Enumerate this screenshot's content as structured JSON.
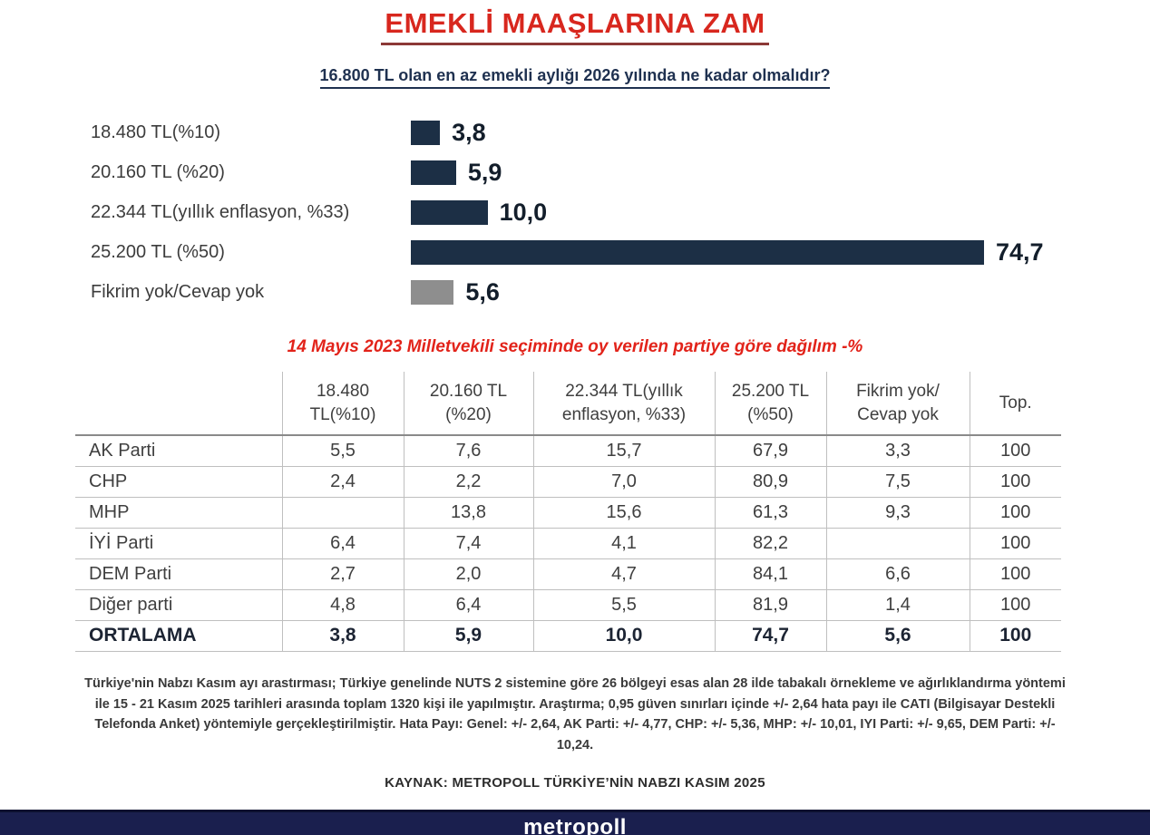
{
  "title": "EMEKLİ MAAŞLARINA ZAM",
  "question": "16.800 TL olan en az emekli aylığı 2026 yılında ne kadar olmalıdır?",
  "chart_data": {
    "type": "bar",
    "orientation": "horizontal",
    "categories": [
      "18.480 TL(%10)",
      "20.160 TL (%20)",
      "22.344 TL(yıllık enflasyon, %33)",
      "25.200 TL (%50)",
      "Fikrim yok/Cevap yok"
    ],
    "values": [
      3.8,
      5.9,
      10.0,
      74.7,
      5.6
    ],
    "value_labels": [
      "3,8",
      "5,9",
      "10,0",
      "74,7",
      "5,6"
    ],
    "xlim": [
      0,
      80
    ],
    "grid": false,
    "legend": false,
    "bar_color_note": "navy for all answer options, gray for no-opinion bar"
  },
  "section_title": "14 Mayıs 2023 Milletvekili seçiminde oy verilen partiye göre dağılım -%",
  "table": {
    "headers": [
      "",
      "18.480\nTL(%10)",
      "20.160 TL\n(%20)",
      "22.344 TL(yıllık\nenflasyon, %33)",
      "25.200 TL\n(%50)",
      "Fikrim yok/\nCevap yok",
      "Top."
    ],
    "rows": [
      {
        "party": "AK Parti",
        "values": [
          "5,5",
          "7,6",
          "15,7",
          "67,9",
          "3,3",
          "100"
        ]
      },
      {
        "party": "CHP",
        "values": [
          "2,4",
          "2,2",
          "7,0",
          "80,9",
          "7,5",
          "100"
        ]
      },
      {
        "party": "MHP",
        "values": [
          "",
          "13,8",
          "15,6",
          "61,3",
          "9,3",
          "100"
        ]
      },
      {
        "party": "İYİ Parti",
        "values": [
          "6,4",
          "7,4",
          "4,1",
          "82,2",
          "",
          "100"
        ]
      },
      {
        "party": "DEM Parti",
        "values": [
          "2,7",
          "2,0",
          "4,7",
          "84,1",
          "6,6",
          "100"
        ]
      },
      {
        "party": "Diğer parti",
        "values": [
          "4,8",
          "6,4",
          "5,5",
          "81,9",
          "1,4",
          "100"
        ]
      },
      {
        "party": "ORTALAMA",
        "values": [
          "3,8",
          "5,9",
          "10,0",
          "74,7",
          "5,6",
          "100"
        ]
      }
    ]
  },
  "methodology": "Türkiye'nin Nabzı Kasım ayı arastırması; Türkiye genelinde NUTS 2 sistemine göre 26 bölgeyi esas alan 28 ilde tabakalı örnekleme ve ağırlıklandırma yöntemi ile 15 - 21 Kasım 2025 tarihleri arasında toplam 1320 kişi ile yapılmıştır. Araştırma; 0,95 güven sınırları içinde +/- 2,64 hata payı ile CATI (Bilgisayar Destekli Telefonda Anket) yöntemiyle gerçekleştirilmiştir. Hata Payı: Genel: +/- 2,64, AK Parti: +/- 4,77, CHP: +/- 5,36, MHP: +/- 10,01, IYI Parti: +/- 9,65, DEM Parti: +/- 10,24.",
  "source": "KAYNAK: METROPOLL TÜRKİYE’NİN NABZI KASIM 2025",
  "footer_logo": "metropoll",
  "colors": {
    "navy_bar": "#1c2f45",
    "gray_bar": "#8e8e8e",
    "title_red": "#d8271e",
    "title_underline": "#8c3836",
    "section_red": "#e2231a",
    "question_navy": "#1f3150",
    "value_text": "#131e2b",
    "label_text": "#3c3c3c",
    "table_text": "#3f3f3f",
    "table_strong": "#1c2433",
    "footer_text": "#3a3a3a",
    "source_text": "#2d2d2d",
    "bottombar": "#1a1f4e",
    "bottombar_edge": "#0d1130",
    "logo_text": "#ffffff",
    "grid": "#bfbfbf",
    "grid_dark": "#8a8a8a"
  }
}
